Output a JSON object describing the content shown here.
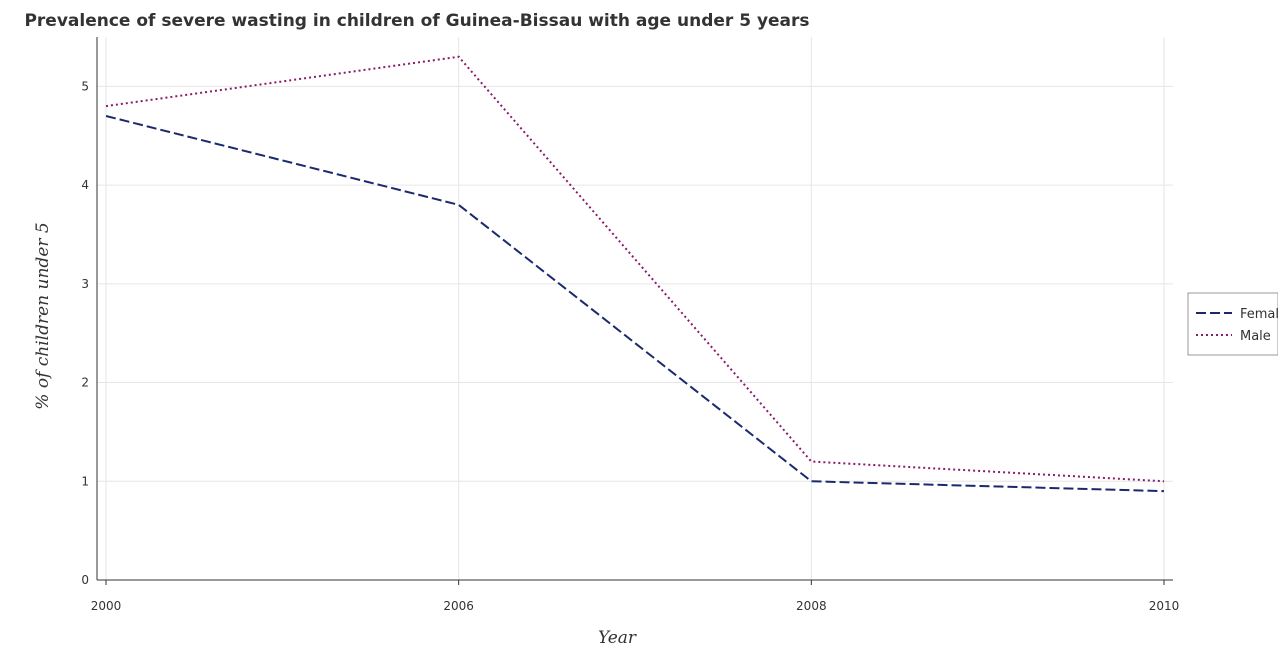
{
  "chart_data": {
    "type": "line",
    "title": "Prevalence of severe wasting in children of Guinea-Bissau with age under 5 years",
    "xlabel": "Year",
    "ylabel": "% of children under 5",
    "categories": [
      "2000",
      "2006",
      "2008",
      "2010"
    ],
    "ylim": [
      0,
      5.5
    ],
    "yticks": [
      0,
      1,
      2,
      3,
      4,
      5
    ],
    "grid": true,
    "legend_position": "right",
    "series": [
      {
        "name": "Female",
        "color": "#1a2a6c",
        "style": "dashed",
        "values": [
          4.7,
          3.8,
          1.0,
          0.9
        ]
      },
      {
        "name": "Male",
        "color": "#8b1a6b",
        "style": "dotted",
        "values": [
          4.8,
          5.3,
          1.2,
          1.0
        ]
      }
    ]
  }
}
